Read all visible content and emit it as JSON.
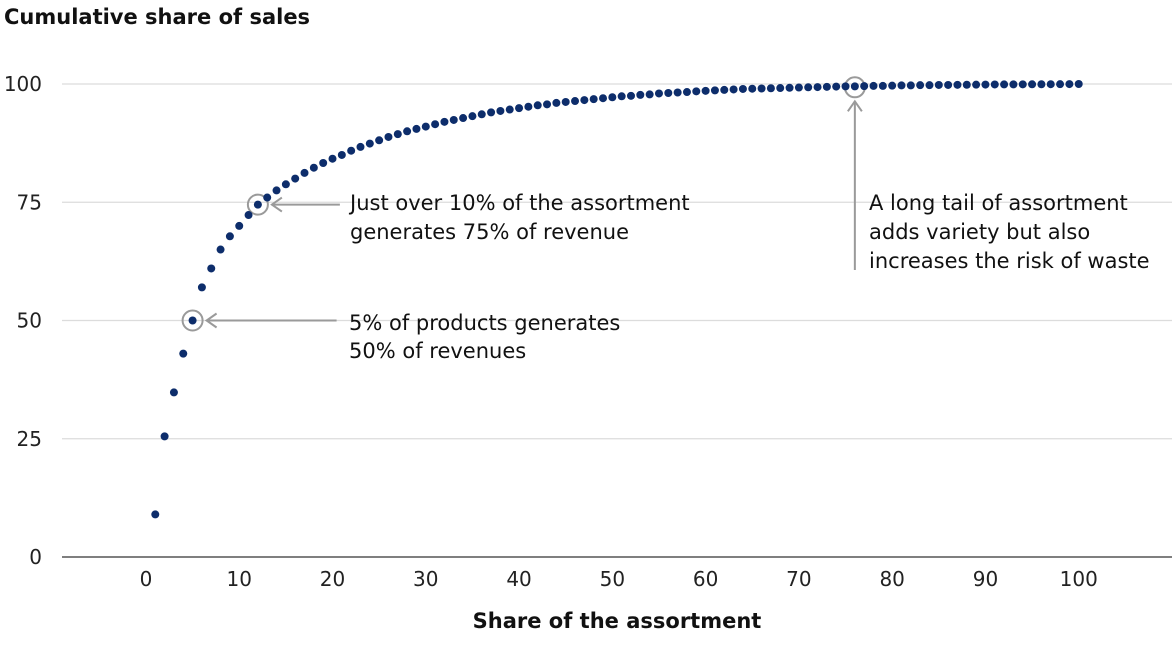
{
  "chart_data": {
    "type": "scatter",
    "title": "Cumulative share of sales",
    "xlabel": "Share of the assortment",
    "ylabel": "Cumulative share of sales",
    "xlim": [
      -9,
      110
    ],
    "ylim": [
      0,
      100
    ],
    "x_ticks": [
      "0",
      "10",
      "20",
      "30",
      "40",
      "50",
      "60",
      "70",
      "80",
      "90",
      "100"
    ],
    "y_ticks": [
      "0",
      "25",
      "50",
      "75",
      "100"
    ],
    "grid": true,
    "color": "#0d2d6b",
    "x": [
      1,
      2,
      3,
      4,
      5,
      6,
      7,
      8,
      9,
      10,
      11,
      12,
      13,
      14,
      15,
      16,
      17,
      18,
      19,
      20,
      21,
      22,
      23,
      24,
      25,
      26,
      27,
      28,
      29,
      30,
      31,
      32,
      33,
      34,
      35,
      36,
      37,
      38,
      39,
      40,
      41,
      42,
      43,
      44,
      45,
      46,
      47,
      48,
      49,
      50,
      51,
      52,
      53,
      54,
      55,
      56,
      57,
      58,
      59,
      60,
      61,
      62,
      63,
      64,
      65,
      66,
      67,
      68,
      69,
      70,
      71,
      72,
      73,
      74,
      75,
      76,
      77,
      78,
      79,
      80,
      81,
      82,
      83,
      84,
      85,
      86,
      87,
      88,
      89,
      90,
      91,
      92,
      93,
      94,
      95,
      96,
      97,
      98,
      99,
      100
    ],
    "y": [
      9,
      25.5,
      34.8,
      43,
      50,
      57,
      61,
      65,
      67.8,
      70,
      72.3,
      74.5,
      76,
      77.5,
      78.8,
      80,
      81.2,
      82.3,
      83.3,
      84.2,
      85,
      85.9,
      86.7,
      87.4,
      88.1,
      88.8,
      89.4,
      90,
      90.5,
      91,
      91.5,
      92,
      92.4,
      92.8,
      93.2,
      93.6,
      94,
      94.3,
      94.6,
      94.9,
      95.2,
      95.5,
      95.7,
      96,
      96.2,
      96.4,
      96.6,
      96.8,
      97,
      97.2,
      97.4,
      97.5,
      97.7,
      97.8,
      98,
      98.1,
      98.2,
      98.3,
      98.45,
      98.55,
      98.65,
      98.75,
      98.85,
      98.95,
      99,
      99.05,
      99.1,
      99.15,
      99.2,
      99.25,
      99.3,
      99.35,
      99.4,
      99.45,
      99.5,
      99.5,
      99.55,
      99.6,
      99.6,
      99.65,
      99.7,
      99.7,
      99.75,
      99.75,
      99.8,
      99.8,
      99.82,
      99.84,
      99.86,
      99.88,
      99.9,
      99.91,
      99.92,
      99.93,
      99.94,
      99.95,
      99.96,
      99.97,
      99.98,
      100
    ],
    "annotations": [
      {
        "x": 12,
        "y": 74.5,
        "lines": [
          "Just over 10% of the assortment",
          "generates 75% of revenue"
        ]
      },
      {
        "x": 5,
        "y": 50,
        "lines": [
          "5% of products generates",
          "50% of revenues"
        ]
      },
      {
        "x": 76,
        "y": 99.3,
        "lines": [
          "A long tail of assortment",
          "adds variety but also",
          "increases the risk of waste"
        ]
      }
    ]
  }
}
